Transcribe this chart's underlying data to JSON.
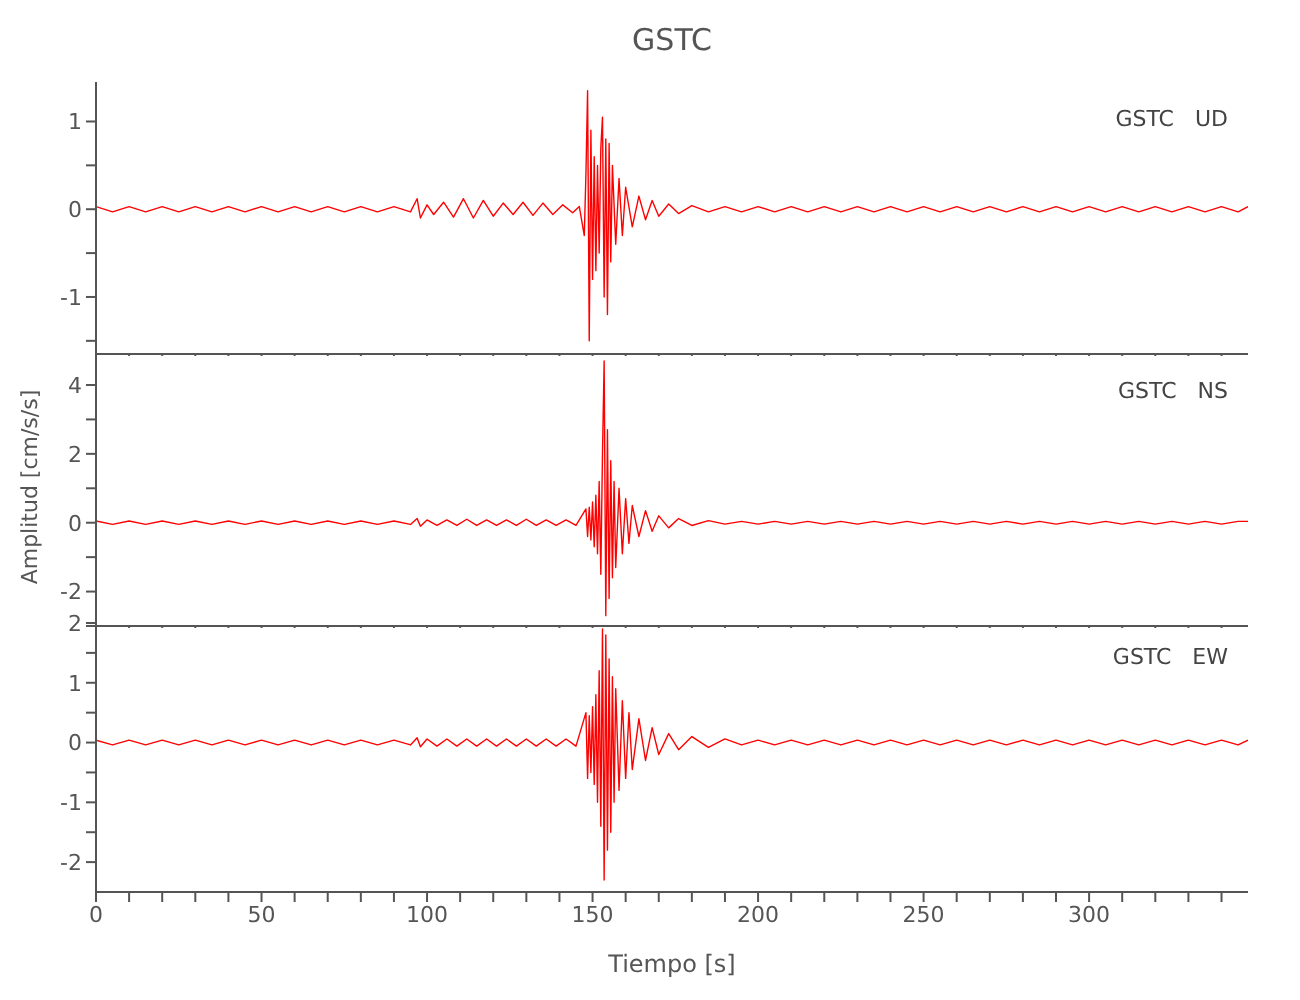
{
  "chart_data": [
    {
      "type": "line",
      "title": "GSTC",
      "annotations": [
        "GSTC   UD"
      ],
      "xlim": [
        0,
        348
      ],
      "ylim": [
        -1.65,
        1.45
      ],
      "xticks": [
        {
          "value": 0,
          "label": null
        },
        {
          "value": 10,
          "label": null
        },
        {
          "value": 20,
          "label": null
        },
        {
          "value": 30,
          "label": null
        },
        {
          "value": 40,
          "label": null
        },
        {
          "value": 50,
          "label": null
        },
        {
          "value": 60,
          "label": null
        },
        {
          "value": 70,
          "label": null
        },
        {
          "value": 80,
          "label": null
        },
        {
          "value": 90,
          "label": null
        },
        {
          "value": 100,
          "label": null
        },
        {
          "value": 110,
          "label": null
        },
        {
          "value": 120,
          "label": null
        },
        {
          "value": 130,
          "label": null
        },
        {
          "value": 140,
          "label": null
        },
        {
          "value": 150,
          "label": null
        },
        {
          "value": 160,
          "label": null
        },
        {
          "value": 170,
          "label": null
        },
        {
          "value": 180,
          "label": null
        },
        {
          "value": 190,
          "label": null
        },
        {
          "value": 200,
          "label": null
        },
        {
          "value": 210,
          "label": null
        },
        {
          "value": 220,
          "label": null
        },
        {
          "value": 230,
          "label": null
        },
        {
          "value": 240,
          "label": null
        },
        {
          "value": 250,
          "label": null
        },
        {
          "value": 260,
          "label": null
        },
        {
          "value": 270,
          "label": null
        },
        {
          "value": 280,
          "label": null
        },
        {
          "value": 290,
          "label": null
        },
        {
          "value": 300,
          "label": null
        },
        {
          "value": 310,
          "label": null
        },
        {
          "value": 320,
          "label": null
        },
        {
          "value": 330,
          "label": null
        },
        {
          "value": 340,
          "label": null
        }
      ],
      "yticks": [
        {
          "value": -1.5,
          "label": null
        },
        -1,
        {
          "value": -0.5,
          "label": null
        },
        0,
        {
          "value": 0.5,
          "label": null
        },
        1
      ],
      "tick_labels": "y",
      "grid": false,
      "legend": false,
      "marker": "none",
      "line_style": "solid",
      "series": [
        {
          "color": "#ff0000",
          "x": [
            0,
            5,
            10,
            15,
            20,
            25,
            30,
            35,
            40,
            45,
            50,
            55,
            60,
            65,
            70,
            75,
            80,
            85,
            90,
            95,
            97,
            98,
            100,
            102,
            105,
            108,
            111,
            114,
            117,
            120,
            123,
            126,
            129,
            132,
            135,
            138,
            141,
            144,
            146,
            147.5,
            148,
            148.5,
            149,
            149.5,
            150,
            150.5,
            151,
            151.5,
            152,
            152.5,
            153,
            153.5,
            154,
            154.5,
            155,
            155.5,
            156,
            157,
            158,
            159,
            160,
            162,
            164,
            166,
            168,
            170,
            173,
            176,
            180,
            185,
            190,
            195,
            200,
            205,
            210,
            215,
            220,
            225,
            230,
            235,
            240,
            245,
            250,
            255,
            260,
            265,
            270,
            275,
            280,
            285,
            290,
            295,
            300,
            305,
            310,
            315,
            320,
            325,
            330,
            335,
            340,
            345,
            348
          ],
          "values": [
            0.03,
            -0.03,
            0.03,
            -0.03,
            0.03,
            -0.03,
            0.03,
            -0.03,
            0.03,
            -0.03,
            0.03,
            -0.03,
            0.03,
            -0.03,
            0.03,
            -0.03,
            0.03,
            -0.03,
            0.03,
            -0.03,
            0.12,
            -0.1,
            0.05,
            -0.06,
            0.08,
            -0.09,
            0.12,
            -0.1,
            0.1,
            -0.08,
            0.07,
            -0.06,
            0.08,
            -0.07,
            0.07,
            -0.06,
            0.05,
            -0.04,
            0.03,
            -0.3,
            0.4,
            1.35,
            -1.5,
            0.9,
            -0.8,
            0.6,
            -0.7,
            0.5,
            -0.5,
            0.7,
            1.05,
            -1.0,
            0.8,
            -1.2,
            0.75,
            -0.6,
            0.5,
            -0.4,
            0.35,
            -0.3,
            0.25,
            -0.2,
            0.15,
            -0.12,
            0.1,
            -0.08,
            0.06,
            -0.05,
            0.04,
            -0.03,
            0.03,
            -0.03,
            0.03,
            -0.03,
            0.03,
            -0.03,
            0.03,
            -0.03,
            0.03,
            -0.03,
            0.03,
            -0.03,
            0.03,
            -0.03,
            0.03,
            -0.03,
            0.03,
            -0.03,
            0.03,
            -0.03,
            0.03,
            -0.03,
            0.03,
            -0.03,
            0.03,
            -0.03,
            0.03,
            -0.03,
            0.03,
            -0.03,
            0.03,
            -0.03,
            0.03
          ]
        }
      ]
    },
    {
      "type": "line",
      "ylabel": "Amplitud [cm/s/s]",
      "annotations": [
        "GSTC   NS"
      ],
      "xlim": [
        0,
        348
      ],
      "ylim": [
        -3,
        4.9
      ],
      "xticks": [
        {
          "value": 0,
          "label": null
        },
        {
          "value": 10,
          "label": null
        },
        {
          "value": 20,
          "label": null
        },
        {
          "value": 30,
          "label": null
        },
        {
          "value": 40,
          "label": null
        },
        {
          "value": 50,
          "label": null
        },
        {
          "value": 60,
          "label": null
        },
        {
          "value": 70,
          "label": null
        },
        {
          "value": 80,
          "label": null
        },
        {
          "value": 90,
          "label": null
        },
        {
          "value": 100,
          "label": null
        },
        {
          "value": 110,
          "label": null
        },
        {
          "value": 120,
          "label": null
        },
        {
          "value": 130,
          "label": null
        },
        {
          "value": 140,
          "label": null
        },
        {
          "value": 150,
          "label": null
        },
        {
          "value": 160,
          "label": null
        },
        {
          "value": 170,
          "label": null
        },
        {
          "value": 180,
          "label": null
        },
        {
          "value": 190,
          "label": null
        },
        {
          "value": 200,
          "label": null
        },
        {
          "value": 210,
          "label": null
        },
        {
          "value": 220,
          "label": null
        },
        {
          "value": 230,
          "label": null
        },
        {
          "value": 240,
          "label": null
        },
        {
          "value": 250,
          "label": null
        },
        {
          "value": 260,
          "label": null
        },
        {
          "value": 270,
          "label": null
        },
        {
          "value": 280,
          "label": null
        },
        {
          "value": 290,
          "label": null
        },
        {
          "value": 300,
          "label": null
        },
        {
          "value": 310,
          "label": null
        },
        {
          "value": 320,
          "label": null
        },
        {
          "value": 330,
          "label": null
        },
        {
          "value": 340,
          "label": null
        }
      ],
      "yticks": [
        {
          "value": -3,
          "label": null
        },
        -2,
        {
          "value": -1,
          "label": null
        },
        0,
        {
          "value": 1,
          "label": null
        },
        2,
        {
          "value": 3,
          "label": null
        },
        4
      ],
      "tick_labels": "y",
      "grid": false,
      "legend": false,
      "marker": "none",
      "line_style": "solid",
      "series": [
        {
          "color": "#ff0000",
          "x": [
            0,
            5,
            10,
            15,
            20,
            25,
            30,
            35,
            40,
            45,
            50,
            55,
            60,
            65,
            70,
            75,
            80,
            85,
            90,
            95,
            97,
            98,
            100,
            103,
            106,
            109,
            112,
            115,
            118,
            121,
            124,
            127,
            130,
            133,
            136,
            139,
            142,
            145,
            148,
            148.5,
            149,
            149.5,
            150,
            150.5,
            151,
            151.5,
            152,
            152.5,
            153,
            153.5,
            154,
            154.5,
            155,
            155.5,
            156,
            156.5,
            157,
            158,
            159,
            160,
            161,
            162,
            164,
            166,
            168,
            170,
            173,
            176,
            180,
            185,
            190,
            195,
            200,
            205,
            210,
            215,
            220,
            225,
            230,
            235,
            240,
            245,
            250,
            255,
            260,
            265,
            270,
            275,
            280,
            285,
            290,
            295,
            300,
            305,
            310,
            315,
            320,
            325,
            330,
            335,
            340,
            345,
            348
          ],
          "values": [
            0.05,
            -0.05,
            0.05,
            -0.05,
            0.05,
            -0.05,
            0.05,
            -0.05,
            0.05,
            -0.05,
            0.05,
            -0.05,
            0.05,
            -0.05,
            0.05,
            -0.05,
            0.05,
            -0.05,
            0.05,
            -0.05,
            0.12,
            -0.1,
            0.08,
            -0.08,
            0.08,
            -0.08,
            0.1,
            -0.08,
            0.08,
            -0.08,
            0.08,
            -0.08,
            0.1,
            -0.08,
            0.08,
            -0.08,
            0.08,
            -0.08,
            0.4,
            -0.4,
            0.45,
            -0.5,
            0.6,
            -0.7,
            0.8,
            -0.9,
            1.2,
            -1.5,
            2.0,
            4.7,
            -2.7,
            2.7,
            -2.2,
            1.8,
            -1.6,
            1.2,
            -1.3,
            1.0,
            -0.9,
            0.7,
            -0.6,
            0.5,
            -0.4,
            0.35,
            -0.25,
            0.2,
            -0.15,
            0.12,
            -0.08,
            0.06,
            -0.04,
            0.04,
            -0.04,
            0.04,
            -0.04,
            0.04,
            -0.04,
            0.04,
            -0.04,
            0.04,
            -0.04,
            0.04,
            -0.04,
            0.04,
            -0.04,
            0.04,
            -0.04,
            0.04,
            -0.04,
            0.04,
            -0.04,
            0.04,
            -0.04,
            0.04,
            -0.04,
            0.04,
            -0.04,
            0.04,
            -0.04,
            0.04,
            -0.04,
            0.04,
            0.04
          ]
        }
      ]
    },
    {
      "type": "line",
      "xlabel": "Tiempo [s]",
      "annotations": [
        "GSTC   EW"
      ],
      "xlim": [
        0,
        348
      ],
      "ylim": [
        -2.5,
        2.05
      ],
      "xticks": [
        0,
        {
          "value": 10,
          "label": null
        },
        {
          "value": 20,
          "label": null
        },
        {
          "value": 30,
          "label": null
        },
        {
          "value": 40,
          "label": null
        },
        50,
        {
          "value": 60,
          "label": null
        },
        {
          "value": 70,
          "label": null
        },
        {
          "value": 80,
          "label": null
        },
        {
          "value": 90,
          "label": null
        },
        100,
        {
          "value": 110,
          "label": null
        },
        {
          "value": 120,
          "label": null
        },
        {
          "value": 130,
          "label": null
        },
        {
          "value": 140,
          "label": null
        },
        150,
        {
          "value": 160,
          "label": null
        },
        {
          "value": 170,
          "label": null
        },
        {
          "value": 180,
          "label": null
        },
        {
          "value": 190,
          "label": null
        },
        200,
        {
          "value": 210,
          "label": null
        },
        {
          "value": 220,
          "label": null
        },
        {
          "value": 230,
          "label": null
        },
        {
          "value": 240,
          "label": null
        },
        250,
        {
          "value": 260,
          "label": null
        },
        {
          "value": 270,
          "label": null
        },
        {
          "value": 280,
          "label": null
        },
        {
          "value": 290,
          "label": null
        },
        300,
        {
          "value": 310,
          "label": null
        },
        {
          "value": 320,
          "label": null
        },
        {
          "value": 330,
          "label": null
        },
        {
          "value": 340,
          "label": null
        }
      ],
      "yticks": [
        -2,
        {
          "value": -1.5,
          "label": null
        },
        -1,
        {
          "value": -0.5,
          "label": null
        },
        0,
        {
          "value": 0.5,
          "label": null
        },
        1,
        {
          "value": 1.5,
          "label": null
        },
        2
      ],
      "grid": false,
      "legend": false,
      "marker": "none",
      "line_style": "solid",
      "series": [
        {
          "color": "#ff0000",
          "x": [
            0,
            5,
            10,
            15,
            20,
            25,
            30,
            35,
            40,
            45,
            50,
            55,
            60,
            65,
            70,
            75,
            80,
            85,
            90,
            95,
            97,
            98,
            100,
            103,
            106,
            109,
            112,
            115,
            118,
            121,
            124,
            127,
            130,
            133,
            136,
            139,
            142,
            145,
            148,
            148.5,
            149,
            149.5,
            150,
            150.5,
            151,
            151.5,
            152,
            152.5,
            153,
            153.5,
            154,
            154.5,
            155,
            155.5,
            156,
            156.5,
            157,
            158,
            159,
            160,
            161,
            162,
            164,
            166,
            168,
            170,
            173,
            176,
            180,
            185,
            190,
            195,
            200,
            205,
            210,
            215,
            220,
            225,
            230,
            235,
            240,
            245,
            250,
            255,
            260,
            265,
            270,
            275,
            280,
            285,
            290,
            295,
            300,
            305,
            310,
            315,
            320,
            325,
            330,
            335,
            340,
            345,
            348
          ],
          "values": [
            0.04,
            -0.04,
            0.04,
            -0.04,
            0.04,
            -0.04,
            0.04,
            -0.04,
            0.04,
            -0.04,
            0.04,
            -0.04,
            0.04,
            -0.04,
            0.04,
            -0.04,
            0.04,
            -0.04,
            0.04,
            -0.04,
            0.08,
            -0.07,
            0.06,
            -0.06,
            0.06,
            -0.06,
            0.06,
            -0.06,
            0.06,
            -0.06,
            0.06,
            -0.06,
            0.06,
            -0.06,
            0.06,
            -0.06,
            0.06,
            -0.06,
            0.5,
            -0.6,
            0.45,
            -0.5,
            0.6,
            -0.7,
            0.8,
            -1.0,
            1.2,
            -1.4,
            1.9,
            -2.3,
            1.8,
            -1.8,
            1.4,
            -1.5,
            1.1,
            -1.0,
            0.9,
            -0.8,
            0.7,
            -0.6,
            0.5,
            -0.45,
            0.4,
            -0.3,
            0.25,
            -0.2,
            0.15,
            -0.12,
            0.1,
            -0.08,
            0.06,
            -0.04,
            0.04,
            -0.04,
            0.04,
            -0.04,
            0.04,
            -0.04,
            0.04,
            -0.04,
            0.04,
            -0.04,
            0.04,
            -0.04,
            0.04,
            -0.04,
            0.04,
            -0.04,
            0.04,
            -0.04,
            0.04,
            -0.04,
            0.04,
            -0.04,
            0.04,
            -0.04,
            0.04,
            -0.04,
            0.04,
            -0.04,
            0.04,
            -0.04,
            0.04
          ]
        }
      ]
    }
  ]
}
